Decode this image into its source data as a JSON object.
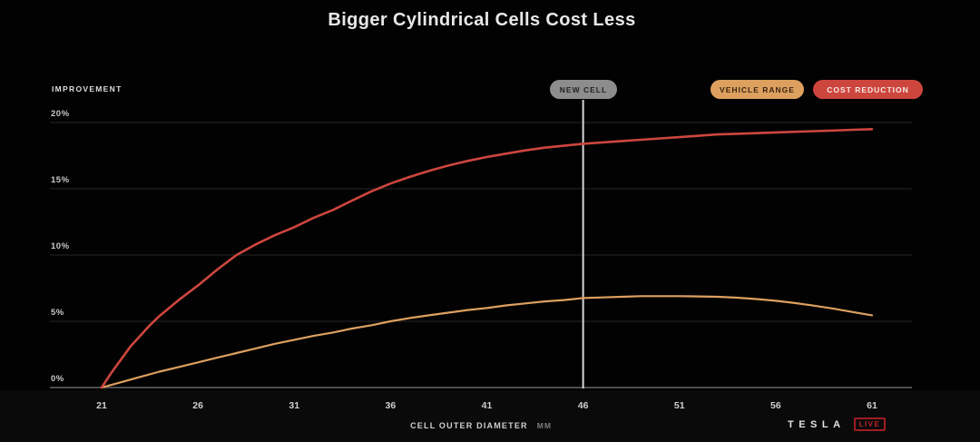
{
  "title": "Bigger Cylindrical Cells Cost Less",
  "axis": {
    "y_label": "IMPROVEMENT",
    "x_label": "CELL OUTER DIAMETER",
    "x_unit": "MM"
  },
  "annotation": {
    "new_cell_label": "NEW CELL",
    "x_value": 46
  },
  "legend": [
    {
      "label": "VEHICLE RANGE",
      "color": "#dda05f"
    },
    {
      "label": "COST REDUCTION",
      "color": "#cd463e"
    }
  ],
  "branding": {
    "wordmark": "TESLA",
    "live_label": "LIVE"
  },
  "colors": {
    "background": "#020202",
    "title_text": "#e8e8e8",
    "tick_text": "#c9c9c9",
    "gridline": "#262626",
    "zero_axis_line": "#4d4d4d",
    "new_cell_line": "#d6d6d6",
    "new_cell_pill_bg": "#8d8d8d",
    "vehicle_range": "#dda05f",
    "cost_reduction": "#cd463e",
    "live_badge": "#c2232b"
  },
  "chart_data": {
    "type": "line",
    "title": "Bigger Cylindrical Cells Cost Less",
    "xlabel": "CELL OUTER DIAMETER (MM)",
    "ylabel": "IMPROVEMENT (%)",
    "xlim": [
      21,
      61
    ],
    "ylim": [
      0,
      20
    ],
    "grid": true,
    "legend_position": "top-right",
    "y_ticks": [
      {
        "value": 0,
        "label": "0%"
      },
      {
        "value": 5,
        "label": "5%"
      },
      {
        "value": 10,
        "label": "10%"
      },
      {
        "value": 15,
        "label": "15%"
      },
      {
        "value": 20,
        "label": "20%"
      }
    ],
    "x_ticks": [
      {
        "value": 21,
        "label": "21"
      },
      {
        "value": 26,
        "label": "26"
      },
      {
        "value": 31,
        "label": "31"
      },
      {
        "value": 36,
        "label": "36"
      },
      {
        "value": 41,
        "label": "41"
      },
      {
        "value": 46,
        "label": "46"
      },
      {
        "value": 51,
        "label": "51"
      },
      {
        "value": 56,
        "label": "56"
      },
      {
        "value": 61,
        "label": "61"
      }
    ],
    "annotations": [
      {
        "label": "NEW CELL",
        "x": 46
      }
    ],
    "series": [
      {
        "name": "Vehicle Range",
        "color": "#dda05f",
        "x": [
          21,
          22,
          23,
          24,
          25,
          26,
          27,
          28,
          29,
          30,
          31,
          32,
          33,
          34,
          35,
          36,
          37,
          38,
          39,
          40,
          41,
          42,
          43,
          44,
          45,
          46,
          47,
          48,
          49,
          50,
          51,
          52,
          53,
          54,
          55,
          56,
          57,
          58,
          59,
          60,
          61
        ],
        "y": [
          0,
          0.4,
          0.8,
          1.2,
          1.55,
          1.9,
          2.25,
          2.6,
          2.95,
          3.3,
          3.6,
          3.9,
          4.15,
          4.45,
          4.7,
          5.0,
          5.25,
          5.45,
          5.65,
          5.85,
          6.0,
          6.2,
          6.35,
          6.5,
          6.6,
          6.75,
          6.8,
          6.85,
          6.9,
          6.9,
          6.9,
          6.88,
          6.85,
          6.78,
          6.68,
          6.55,
          6.38,
          6.18,
          5.95,
          5.7,
          5.45
        ]
      },
      {
        "name": "Cost Reduction",
        "color": "#cd463e",
        "x": [
          21,
          21.5,
          22,
          22.5,
          23,
          23.5,
          24,
          25,
          26,
          27,
          28,
          29,
          30,
          31,
          32,
          33,
          34,
          35,
          36,
          37,
          38,
          39,
          40,
          41,
          42,
          43,
          44,
          45,
          46,
          47,
          48,
          49,
          50,
          51,
          52,
          53,
          54,
          55,
          56,
          57,
          58,
          59,
          60,
          61
        ],
        "y": [
          0,
          1.1,
          2.1,
          3.1,
          3.9,
          4.7,
          5.4,
          6.6,
          7.7,
          8.9,
          10.0,
          10.8,
          11.5,
          12.1,
          12.8,
          13.4,
          14.1,
          14.8,
          15.4,
          15.9,
          16.35,
          16.75,
          17.1,
          17.4,
          17.65,
          17.9,
          18.1,
          18.25,
          18.4,
          18.5,
          18.6,
          18.7,
          18.8,
          18.9,
          19.0,
          19.1,
          19.15,
          19.2,
          19.25,
          19.3,
          19.35,
          19.4,
          19.45,
          19.5
        ]
      }
    ]
  }
}
